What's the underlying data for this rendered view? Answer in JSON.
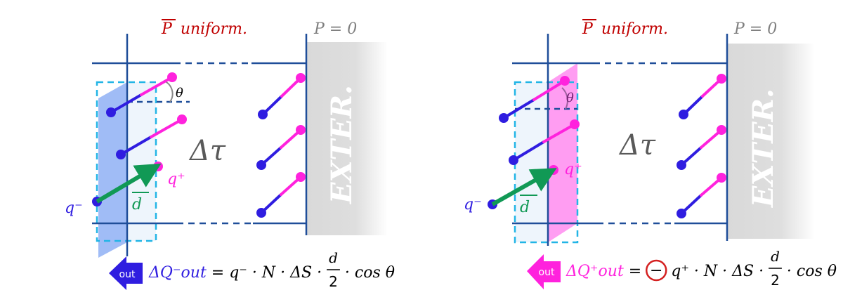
{
  "colors": {
    "field_title": "#c00000",
    "zero_field": "#7f7f7f",
    "frame": "#1f4e99",
    "negative": "#2f1de0",
    "positive": "#ff22dd",
    "dipole_vector": "#119955",
    "exterior": "#d9d9d9",
    "highlight_circle": "#d42020"
  },
  "panels": [
    {
      "title": "P uniform.",
      "title_vector": "P",
      "title_rest": "uniform.",
      "exterior_field": "P = 0",
      "exterior_label": "EXTER.",
      "volume_label": "Δτ",
      "angle_label": "θ",
      "charge_neg": "q⁻",
      "charge_pos": "q⁺",
      "dipole_label": "d",
      "out_label": "out",
      "out_color": "#2f1de0",
      "equation_lhs": "ΔQ⁻out",
      "equation_rhs": "= q⁻ · N · ΔS ·",
      "fraction_num": "d",
      "fraction_den": "2",
      "equation_tail": "· cos θ"
    },
    {
      "title": "P uniform.",
      "title_vector": "P",
      "title_rest": "uniform.",
      "exterior_field": "P = 0",
      "exterior_label": "EXTER.",
      "volume_label": "Δτ",
      "angle_label": "θ",
      "charge_neg": "q⁻",
      "charge_pos": "q⁺",
      "dipole_label": "d",
      "out_label": "out",
      "out_color": "#ff22dd",
      "equation_lhs": "ΔQ⁺out",
      "equation_sign": "−",
      "equation_rhs": "q⁺ · N · ΔS ·",
      "fraction_num": "d",
      "fraction_den": "2",
      "equation_tail": "· cos θ"
    }
  ]
}
